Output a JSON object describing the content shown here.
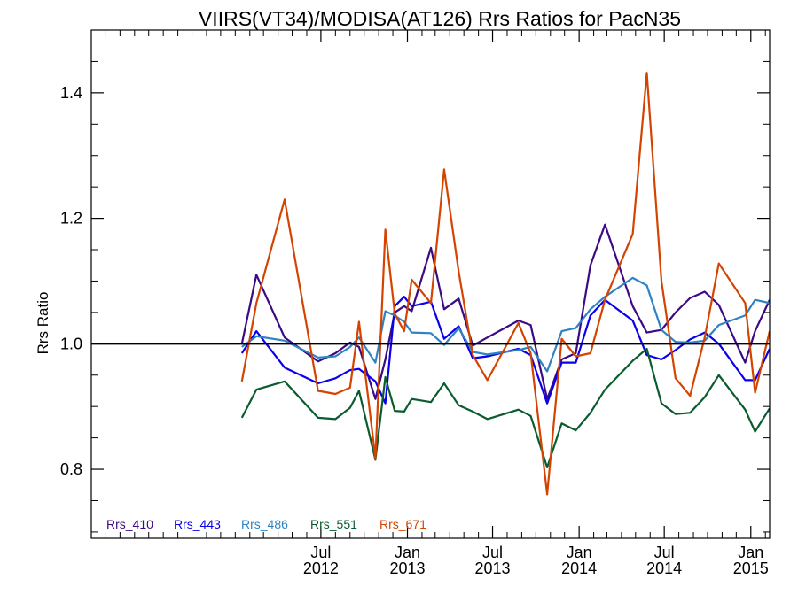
{
  "chart_data": {
    "type": "line",
    "title": "VIIRS(VT34)/MODISA(AT126)  Rrs Ratios for PacN35",
    "ylabel": "Rrs Ratio",
    "xlabel": "",
    "xlim": [
      "2011-03-01",
      "2015-02-10"
    ],
    "ylim": [
      0.69,
      1.5
    ],
    "y_ticks": [
      0.8,
      1.0,
      1.2,
      1.4
    ],
    "y_tick_labels": [
      "0.8",
      "1.0",
      "1.2",
      "1.4"
    ],
    "x_ticks": [
      {
        "date": "2012-07-01",
        "label_top": "Jul",
        "label_bottom": "2012"
      },
      {
        "date": "2013-01-01",
        "label_top": "Jan",
        "label_bottom": "2013"
      },
      {
        "date": "2013-07-01",
        "label_top": "Jul",
        "label_bottom": "2013"
      },
      {
        "date": "2014-01-01",
        "label_top": "Jan",
        "label_bottom": "2014"
      },
      {
        "date": "2014-07-01",
        "label_top": "Jul",
        "label_bottom": "2014"
      },
      {
        "date": "2015-01-01",
        "label_top": "Jan",
        "label_bottom": "2015"
      }
    ],
    "reference_line": 1.0,
    "legend_position": "bottom-left",
    "series": [
      {
        "name": "Rrs_410",
        "color": "#3b0a85",
        "points": [
          [
            "2012-01-15",
            1.0
          ],
          [
            "2012-02-15",
            1.11
          ],
          [
            "2012-04-15",
            1.01
          ],
          [
            "2012-06-25",
            0.972
          ],
          [
            "2012-08-01",
            0.985
          ],
          [
            "2012-09-01",
            1.002
          ],
          [
            "2012-09-20",
            0.995
          ],
          [
            "2012-10-25",
            0.912
          ],
          [
            "2012-11-15",
            0.975
          ],
          [
            "2012-12-05",
            1.05
          ],
          [
            "2012-12-25",
            1.06
          ],
          [
            "2013-01-10",
            1.052
          ],
          [
            "2013-02-20",
            1.153
          ],
          [
            "2013-03-20",
            1.055
          ],
          [
            "2013-04-20",
            1.072
          ],
          [
            "2013-05-20",
            0.997
          ],
          [
            "2013-06-20",
            1.01
          ],
          [
            "2013-08-25",
            1.037
          ],
          [
            "2013-09-20",
            1.03
          ],
          [
            "2013-10-25",
            0.912
          ],
          [
            "2013-11-25",
            0.975
          ],
          [
            "2013-12-25",
            0.985
          ],
          [
            "2014-01-25",
            1.125
          ],
          [
            "2014-02-25",
            1.19
          ],
          [
            "2014-04-25",
            1.06
          ],
          [
            "2014-05-25",
            1.018
          ],
          [
            "2014-06-25",
            1.022
          ],
          [
            "2014-07-25",
            1.05
          ],
          [
            "2014-08-25",
            1.073
          ],
          [
            "2014-09-25",
            1.083
          ],
          [
            "2014-10-25",
            1.062
          ],
          [
            "2014-12-20",
            0.97
          ],
          [
            "2015-01-10",
            1.02
          ],
          [
            "2015-02-10",
            1.07
          ]
        ]
      },
      {
        "name": "Rrs_443",
        "color": "#0b00ee",
        "points": [
          [
            "2012-01-15",
            0.985
          ],
          [
            "2012-02-15",
            1.02
          ],
          [
            "2012-04-15",
            0.962
          ],
          [
            "2012-06-25",
            0.937
          ],
          [
            "2012-08-01",
            0.945
          ],
          [
            "2012-09-01",
            0.958
          ],
          [
            "2012-09-20",
            0.96
          ],
          [
            "2012-10-25",
            0.94
          ],
          [
            "2012-11-15",
            0.905
          ],
          [
            "2012-12-05",
            1.06
          ],
          [
            "2012-12-25",
            1.075
          ],
          [
            "2013-01-10",
            1.06
          ],
          [
            "2013-02-20",
            1.067
          ],
          [
            "2013-03-20",
            1.008
          ],
          [
            "2013-04-20",
            1.028
          ],
          [
            "2013-05-20",
            0.977
          ],
          [
            "2013-06-20",
            0.98
          ],
          [
            "2013-08-25",
            0.992
          ],
          [
            "2013-09-20",
            0.982
          ],
          [
            "2013-10-25",
            0.905
          ],
          [
            "2013-11-25",
            0.97
          ],
          [
            "2013-12-25",
            0.97
          ],
          [
            "2014-01-25",
            1.045
          ],
          [
            "2014-02-25",
            1.07
          ],
          [
            "2014-04-25",
            1.037
          ],
          [
            "2014-05-25",
            0.982
          ],
          [
            "2014-06-25",
            0.975
          ],
          [
            "2014-07-25",
            0.99
          ],
          [
            "2014-08-25",
            1.007
          ],
          [
            "2014-09-25",
            1.018
          ],
          [
            "2014-10-25",
            1.0
          ],
          [
            "2014-12-20",
            0.942
          ],
          [
            "2015-01-10",
            0.942
          ],
          [
            "2015-02-10",
            0.992
          ]
        ]
      },
      {
        "name": "Rrs_486",
        "color": "#2f83c2",
        "points": [
          [
            "2012-01-15",
            0.995
          ],
          [
            "2012-02-15",
            1.012
          ],
          [
            "2012-04-15",
            1.005
          ],
          [
            "2012-06-25",
            0.978
          ],
          [
            "2012-08-01",
            0.98
          ],
          [
            "2012-09-01",
            0.995
          ],
          [
            "2012-09-20",
            1.01
          ],
          [
            "2012-10-25",
            0.97
          ],
          [
            "2012-11-15",
            1.052
          ],
          [
            "2012-12-05",
            1.045
          ],
          [
            "2012-12-25",
            1.035
          ],
          [
            "2013-01-10",
            1.018
          ],
          [
            "2013-02-20",
            1.017
          ],
          [
            "2013-03-20",
            0.998
          ],
          [
            "2013-04-20",
            1.025
          ],
          [
            "2013-05-20",
            0.987
          ],
          [
            "2013-06-20",
            0.983
          ],
          [
            "2013-08-25",
            0.99
          ],
          [
            "2013-09-20",
            0.995
          ],
          [
            "2013-10-25",
            0.956
          ],
          [
            "2013-11-25",
            1.02
          ],
          [
            "2013-12-25",
            1.025
          ],
          [
            "2014-01-25",
            1.055
          ],
          [
            "2014-02-25",
            1.075
          ],
          [
            "2014-04-25",
            1.105
          ],
          [
            "2014-05-25",
            1.093
          ],
          [
            "2014-06-25",
            1.022
          ],
          [
            "2014-07-25",
            1.003
          ],
          [
            "2014-08-25",
            1.002
          ],
          [
            "2014-09-25",
            1.005
          ],
          [
            "2014-10-25",
            1.03
          ],
          [
            "2014-12-20",
            1.045
          ],
          [
            "2015-01-10",
            1.07
          ],
          [
            "2015-02-10",
            1.065
          ]
        ]
      },
      {
        "name": "Rrs_551",
        "color": "#0a5c2e",
        "points": [
          [
            "2012-01-15",
            0.882
          ],
          [
            "2012-02-15",
            0.927
          ],
          [
            "2012-04-15",
            0.94
          ],
          [
            "2012-06-25",
            0.882
          ],
          [
            "2012-08-01",
            0.88
          ],
          [
            "2012-09-01",
            0.898
          ],
          [
            "2012-09-20",
            0.925
          ],
          [
            "2012-10-25",
            0.815
          ],
          [
            "2012-11-15",
            0.947
          ],
          [
            "2012-12-05",
            0.893
          ],
          [
            "2012-12-25",
            0.892
          ],
          [
            "2013-01-10",
            0.912
          ],
          [
            "2013-02-20",
            0.907
          ],
          [
            "2013-03-20",
            0.937
          ],
          [
            "2013-04-20",
            0.902
          ],
          [
            "2013-05-20",
            0.892
          ],
          [
            "2013-06-20",
            0.88
          ],
          [
            "2013-08-25",
            0.895
          ],
          [
            "2013-09-20",
            0.885
          ],
          [
            "2013-10-25",
            0.803
          ],
          [
            "2013-11-25",
            0.873
          ],
          [
            "2013-12-25",
            0.862
          ],
          [
            "2014-01-25",
            0.89
          ],
          [
            "2014-02-25",
            0.927
          ],
          [
            "2014-04-25",
            0.973
          ],
          [
            "2014-05-25",
            0.992
          ],
          [
            "2014-06-25",
            0.905
          ],
          [
            "2014-07-25",
            0.888
          ],
          [
            "2014-08-25",
            0.89
          ],
          [
            "2014-09-25",
            0.915
          ],
          [
            "2014-10-25",
            0.95
          ],
          [
            "2014-12-20",
            0.895
          ],
          [
            "2015-01-10",
            0.86
          ],
          [
            "2015-02-10",
            0.897
          ]
        ]
      },
      {
        "name": "Rrs_671",
        "color": "#d44400",
        "points": [
          [
            "2012-01-15",
            0.94
          ],
          [
            "2012-02-15",
            1.065
          ],
          [
            "2012-04-15",
            1.23
          ],
          [
            "2012-06-25",
            0.925
          ],
          [
            "2012-08-01",
            0.92
          ],
          [
            "2012-09-01",
            0.93
          ],
          [
            "2012-09-20",
            1.035
          ],
          [
            "2012-10-25",
            0.818
          ],
          [
            "2012-11-15",
            1.182
          ],
          [
            "2012-12-05",
            1.048
          ],
          [
            "2012-12-25",
            1.02
          ],
          [
            "2013-01-10",
            1.102
          ],
          [
            "2013-02-20",
            1.065
          ],
          [
            "2013-03-20",
            1.278
          ],
          [
            "2013-04-20",
            1.115
          ],
          [
            "2013-05-20",
            0.982
          ],
          [
            "2013-06-20",
            0.942
          ],
          [
            "2013-08-25",
            1.033
          ],
          [
            "2013-09-20",
            0.985
          ],
          [
            "2013-10-25",
            0.76
          ],
          [
            "2013-11-25",
            1.008
          ],
          [
            "2013-12-25",
            0.98
          ],
          [
            "2014-01-25",
            0.985
          ],
          [
            "2014-02-25",
            1.07
          ],
          [
            "2014-04-25",
            1.175
          ],
          [
            "2014-05-25",
            1.432
          ],
          [
            "2014-06-25",
            1.1
          ],
          [
            "2014-07-25",
            0.945
          ],
          [
            "2014-08-25",
            0.917
          ],
          [
            "2014-09-25",
            1.01
          ],
          [
            "2014-10-25",
            1.128
          ],
          [
            "2014-12-20",
            1.065
          ],
          [
            "2015-01-10",
            0.922
          ],
          [
            "2015-02-10",
            1.02
          ]
        ]
      }
    ]
  }
}
